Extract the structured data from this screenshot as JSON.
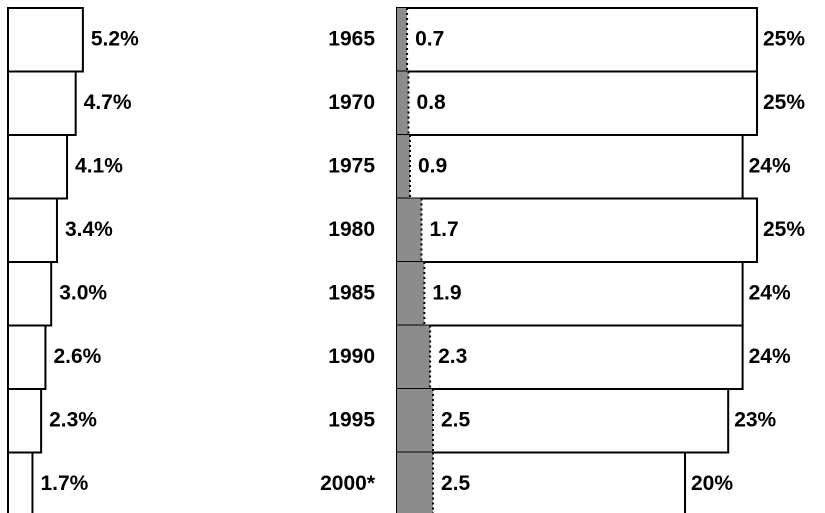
{
  "chart_data": {
    "type": "bar",
    "orientation": "horizontal",
    "categories": [
      "1965",
      "1970",
      "1975",
      "1980",
      "1985",
      "1990",
      "1995",
      "2000*"
    ],
    "series": [
      {
        "color": "#ffffff",
        "values": [
          5.2,
          4.7,
          4.1,
          3.4,
          3.0,
          2.6,
          2.3,
          1.7
        ],
        "value_labels": [
          "5.2%",
          "4.7%",
          "4.1%",
          "3.4%",
          "3.0%",
          "2.6%",
          "2.3%",
          "1.7%"
        ]
      },
      {
        "color": "#8c8c8c",
        "values": [
          0.7,
          0.8,
          0.9,
          1.7,
          1.9,
          2.3,
          2.5,
          2.5
        ]
      },
      {
        "color": "#ffffff",
        "values": [
          25,
          25,
          24,
          25,
          24,
          24,
          23,
          20
        ],
        "value_labels": [
          "25%",
          "25%",
          "24%",
          "25%",
          "24%",
          "24%",
          "23%",
          "20%"
        ]
      }
    ]
  }
}
